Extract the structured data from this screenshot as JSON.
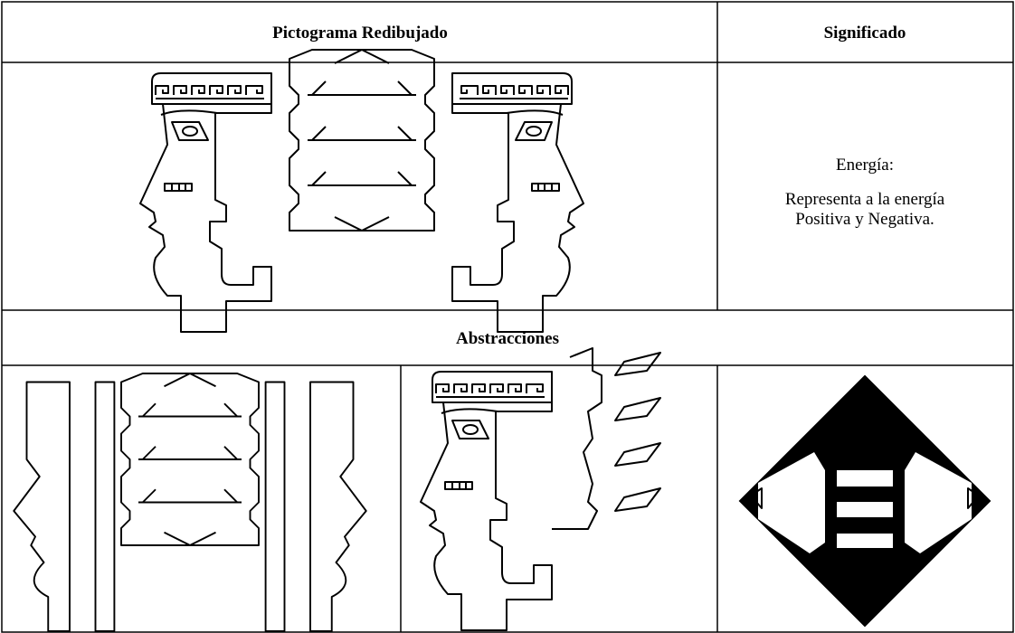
{
  "table": {
    "header": [
      "Pictograma Redibujado",
      "Significado"
    ],
    "meaning": {
      "title": "Energía:",
      "lines": [
        "Representa a la energía",
        "Positiva y Negativa."
      ]
    },
    "section": "Abstracciones"
  }
}
